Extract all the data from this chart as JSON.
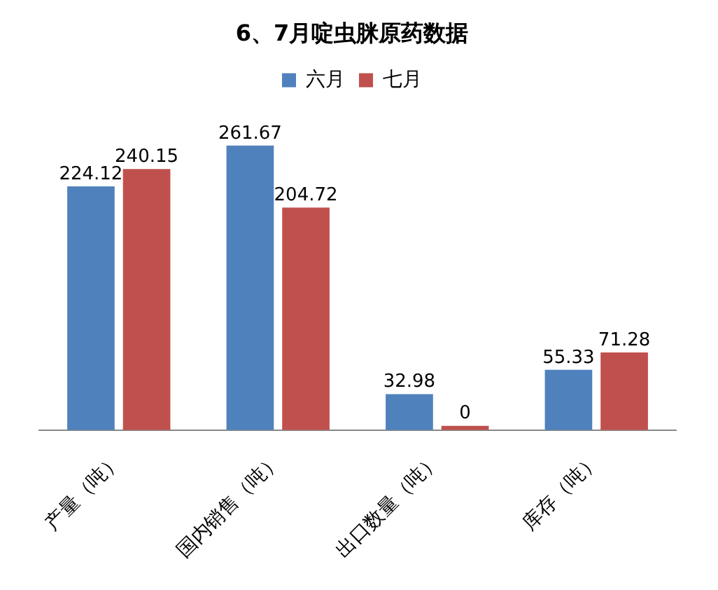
{
  "chart_data": {
    "type": "bar",
    "title": "6、7月啶虫脒原药数据",
    "categories": [
      "产量（吨）",
      "国内销售（吨）",
      "出口数量（吨）",
      "库存（吨）"
    ],
    "series": [
      {
        "name": "六月",
        "color": "#4f81bd",
        "values": [
          224.12,
          261.67,
          32.98,
          55.33
        ]
      },
      {
        "name": "七月",
        "color": "#c0504d",
        "values": [
          240.15,
          204.72,
          0,
          71.28
        ]
      }
    ],
    "data_labels": true,
    "legend": "top",
    "tick_labels": "x",
    "grid": false
  }
}
